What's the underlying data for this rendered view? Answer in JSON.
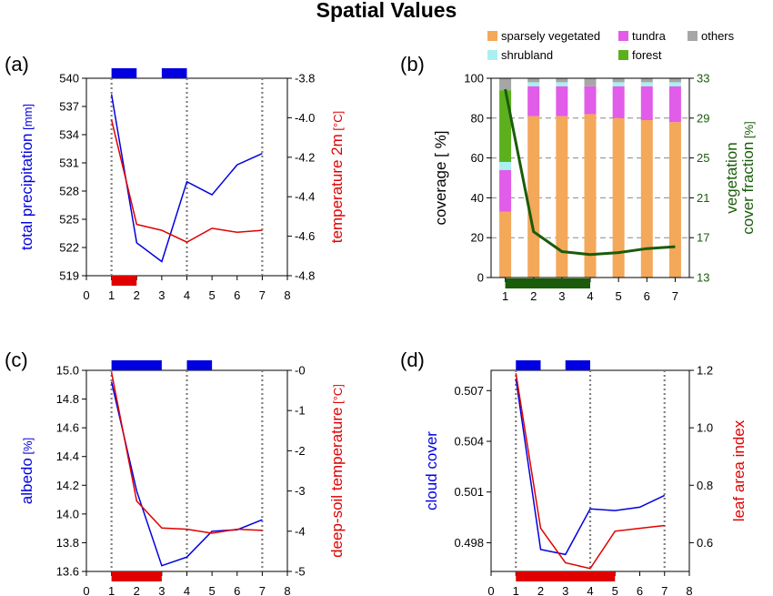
{
  "figure": {
    "title": "Spatial Values"
  },
  "colors": {
    "left": "#0000e0",
    "right": "#e00000",
    "grid": "#808080",
    "green": "#1a5c0a",
    "sparse": "#f3a85a",
    "tundra": "#e15ce8",
    "shrub": "#aaf0f0",
    "forest": "#5cb01e",
    "others": "#a6a6a6"
  },
  "chart_data": [
    {
      "id": "a",
      "type": "line",
      "panel_label": "(a)",
      "xlim": [
        0,
        8
      ],
      "xticks": [
        "0",
        "1",
        "2",
        "3",
        "4",
        "5",
        "6",
        "7",
        "8"
      ],
      "left_axis": {
        "label": "total precipitation",
        "unit": "[mm]",
        "ylim": [
          519,
          540
        ],
        "ticks": [
          "519",
          "522",
          "525",
          "528",
          "531",
          "534",
          "537",
          "540"
        ]
      },
      "right_axis": {
        "label": "temperature 2m",
        "unit": "[°C]",
        "ylim": [
          -4.8,
          -3.8
        ],
        "ticks": [
          "-4.8",
          "-4.6",
          "-4.4",
          "-4.2",
          "-4.0",
          "-3.8"
        ]
      },
      "vlines": [
        1,
        4,
        7
      ],
      "series": [
        {
          "axis": "left",
          "x": [
            1,
            2,
            3,
            4,
            5,
            6,
            7
          ],
          "values": [
            538.3,
            522.5,
            520.5,
            529.0,
            527.6,
            530.8,
            532.0
          ]
        },
        {
          "axis": "right",
          "x": [
            1,
            2,
            3,
            4,
            5,
            6,
            7
          ],
          "values": [
            -4.01,
            -4.54,
            -4.57,
            -4.63,
            -4.56,
            -4.58,
            -4.57
          ]
        }
      ],
      "top_bars": [
        [
          1,
          2
        ],
        [
          3,
          4
        ]
      ],
      "bottom_bars": [
        [
          1,
          2
        ]
      ]
    },
    {
      "id": "b",
      "type": "bar",
      "panel_label": "(b)",
      "categories": [
        "1",
        "2",
        "3",
        "4",
        "5",
        "6",
        "7"
      ],
      "left_axis": {
        "label": "coverage",
        "unit": "[ %]",
        "ylim": [
          0,
          100
        ],
        "ticks": [
          "0",
          "20",
          "40",
          "60",
          "80",
          "100"
        ]
      },
      "right_axis": {
        "label": "vegetation",
        "label2": "cover fraction",
        "unit": "[%]",
        "ylim": [
          13,
          33
        ],
        "ticks": [
          "13",
          "17",
          "21",
          "25",
          "29",
          "33"
        ]
      },
      "legend": [
        "sparsely vegetated",
        "tundra",
        "others",
        "shrubland",
        "forest"
      ],
      "series": [
        {
          "name": "sparsely vegetated",
          "values": [
            33,
            81,
            81,
            82,
            80,
            79,
            78
          ]
        },
        {
          "name": "tundra",
          "values": [
            21,
            15,
            15,
            14,
            16,
            17,
            18
          ]
        },
        {
          "name": "shrubland",
          "values": [
            4,
            2,
            2,
            0,
            2,
            2,
            2
          ]
        },
        {
          "name": "forest",
          "values": [
            36,
            0,
            0,
            0,
            0,
            0,
            0
          ]
        },
        {
          "name": "others",
          "values": [
            6,
            2,
            2,
            4,
            2,
            2,
            2
          ]
        }
      ],
      "line": {
        "axis": "right",
        "values": [
          31.9,
          17.6,
          15.6,
          15.3,
          15.5,
          15.9,
          16.1
        ]
      },
      "bottom_bars": [
        [
          1,
          4
        ]
      ]
    },
    {
      "id": "c",
      "type": "line",
      "panel_label": "(c)",
      "xlim": [
        0,
        8
      ],
      "xticks": [
        "0",
        "1",
        "2",
        "3",
        "4",
        "5",
        "6",
        "7",
        "8"
      ],
      "left_axis": {
        "label": "albedo",
        "unit": "[%]",
        "ylim": [
          13.6,
          15.0
        ],
        "ticks": [
          "13.6",
          "13.8",
          "14.0",
          "14.2",
          "14.4",
          "14.6",
          "14.8",
          "15.0"
        ]
      },
      "right_axis": {
        "label": "deep-soil temperature",
        "unit": "[°C]",
        "ylim": [
          -5,
          0
        ],
        "ticks": [
          "-5",
          "-4",
          "-3",
          "-2",
          "-1",
          "-0"
        ]
      },
      "vlines": [
        1,
        4,
        7
      ],
      "series": [
        {
          "axis": "left",
          "x": [
            1,
            2,
            3,
            4,
            5,
            6,
            7
          ],
          "values": [
            14.92,
            14.16,
            13.64,
            13.7,
            13.88,
            13.89,
            13.96
          ]
        },
        {
          "axis": "right",
          "x": [
            1,
            2,
            3,
            4,
            5,
            6,
            7
          ],
          "values": [
            -0.05,
            -3.25,
            -3.92,
            -3.95,
            -4.05,
            -3.95,
            -3.98
          ]
        }
      ],
      "top_bars": [
        [
          1,
          3
        ],
        [
          4,
          5
        ]
      ],
      "bottom_bars": [
        [
          1,
          3
        ]
      ]
    },
    {
      "id": "d",
      "type": "line",
      "panel_label": "(d)",
      "xlim": [
        0,
        8
      ],
      "xticks": [
        "0",
        "1",
        "2",
        "3",
        "4",
        "5",
        "6",
        "7",
        "8"
      ],
      "left_axis": {
        "label": "cloud cover",
        "unit": "",
        "ylim": [
          0.4963,
          0.5082
        ],
        "ticks": [
          "0.498",
          "0.501",
          "0.504",
          "0.507"
        ]
      },
      "right_axis": {
        "label": "leaf area index",
        "unit": "",
        "ylim": [
          0.5,
          1.2
        ],
        "ticks": [
          "0.6",
          "0.8",
          "1.0",
          "1.2"
        ]
      },
      "vlines": [
        1,
        4,
        7
      ],
      "series": [
        {
          "axis": "left",
          "x": [
            1,
            2,
            3,
            4,
            5,
            6,
            7
          ],
          "values": [
            0.5077,
            0.4976,
            0.4973,
            0.5,
            0.4999,
            0.5001,
            0.5008
          ]
        },
        {
          "axis": "right",
          "x": [
            1,
            2,
            3,
            4,
            5,
            6,
            7
          ],
          "values": [
            1.19,
            0.65,
            0.53,
            0.51,
            0.64,
            0.65,
            0.66
          ]
        }
      ],
      "top_bars": [
        [
          1,
          2
        ],
        [
          3,
          4
        ]
      ],
      "bottom_bars": [
        [
          1,
          5
        ]
      ]
    }
  ]
}
